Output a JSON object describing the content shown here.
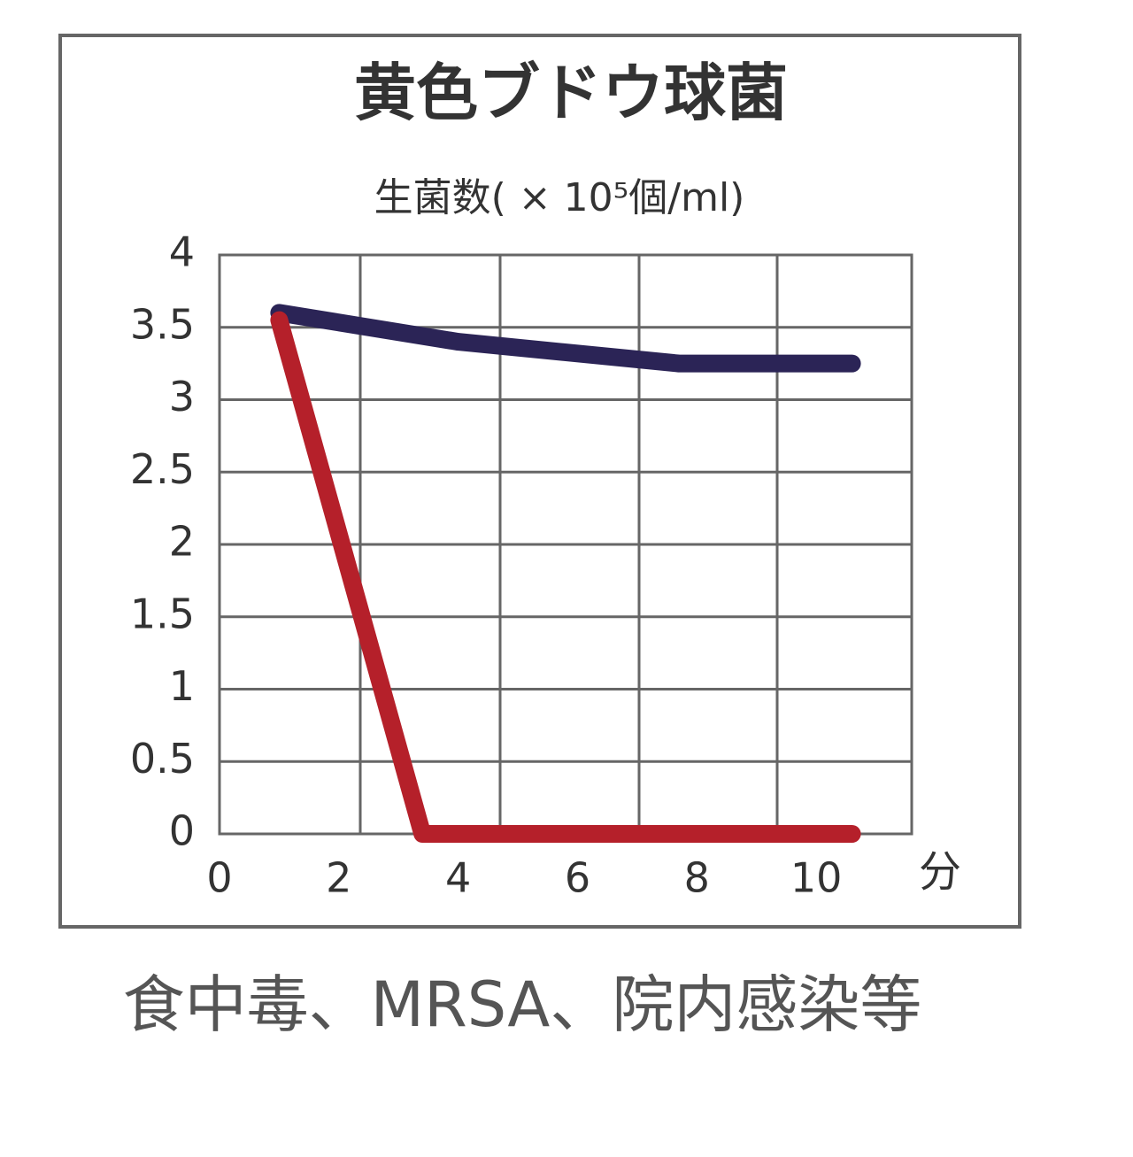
{
  "chart_data": {
    "type": "line",
    "title": "黄色ブドウ球菌",
    "y_label": "生菌数( × 10⁵個/ml)",
    "x_unit": "分",
    "caption": "食中毒、MRSA、院内感染等",
    "xlim": [
      0,
      11.6
    ],
    "xticks": [
      0,
      2,
      4,
      6,
      8,
      10
    ],
    "ylim": [
      0,
      4
    ],
    "yticks": [
      0,
      0.5,
      1,
      1.5,
      2,
      2.5,
      3,
      3.5,
      4
    ],
    "grid": true,
    "series": [
      {
        "color": "#2b2456",
        "x": [
          1,
          4,
          7.7,
          10.6
        ],
        "values": [
          3.6,
          3.4,
          3.25,
          3.25
        ]
      },
      {
        "color": "#b5202a",
        "x": [
          1,
          3.4,
          10.6
        ],
        "values": [
          3.55,
          0,
          0
        ]
      }
    ]
  }
}
